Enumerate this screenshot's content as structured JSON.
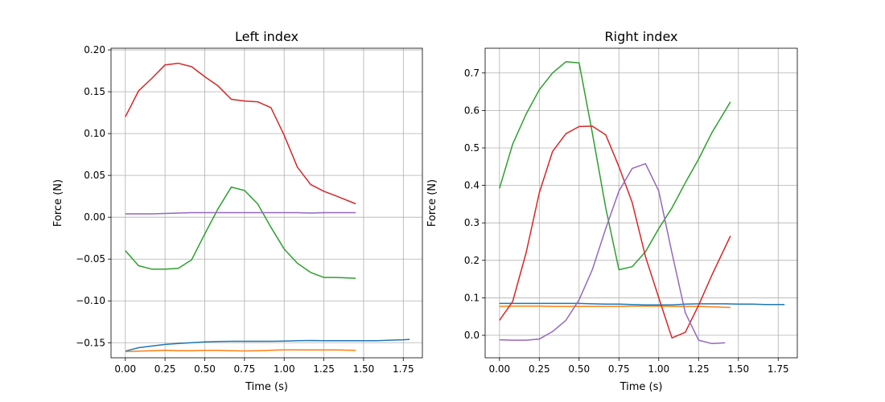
{
  "chart_data": [
    {
      "type": "line",
      "title": "Left index",
      "xlabel": "Time (s)",
      "ylabel": "Force (N)",
      "xlim": [
        -0.09,
        1.87
      ],
      "ylim": [
        -0.168,
        0.202
      ],
      "xticks": [
        0.0,
        0.25,
        0.5,
        0.75,
        1.0,
        1.25,
        1.5,
        1.75
      ],
      "xtick_labels": [
        "0.00",
        "0.25",
        "0.50",
        "0.75",
        "1.00",
        "1.25",
        "1.50",
        "1.75"
      ],
      "yticks": [
        -0.15,
        -0.1,
        -0.05,
        0.0,
        0.05,
        0.1,
        0.15,
        0.2
      ],
      "ytick_labels": [
        "−0.15",
        "−0.10",
        "−0.05",
        "0.00",
        "0.05",
        "0.10",
        "0.15",
        "0.20"
      ],
      "grid": true,
      "series": [
        {
          "color": "#1f77b4",
          "x": [
            0.0,
            0.083,
            0.167,
            0.25,
            0.333,
            0.417,
            0.5,
            0.583,
            0.667,
            0.75,
            0.833,
            0.917,
            1.0,
            1.083,
            1.167,
            1.25,
            1.333,
            1.417,
            1.5,
            1.583,
            1.667,
            1.75,
            1.79
          ],
          "y": [
            -0.16,
            -0.156,
            -0.154,
            -0.152,
            -0.151,
            -0.15,
            -0.149,
            -0.1485,
            -0.1483,
            -0.1483,
            -0.1483,
            -0.1483,
            -0.148,
            -0.1475,
            -0.1473,
            -0.1475,
            -0.1475,
            -0.1475,
            -0.1475,
            -0.1475,
            -0.147,
            -0.1465,
            -0.146
          ]
        },
        {
          "color": "#ff7f0e",
          "x": [
            0.0,
            0.083,
            0.167,
            0.25,
            0.333,
            0.417,
            0.5,
            0.583,
            0.667,
            0.75,
            0.833,
            0.917,
            1.0,
            1.083,
            1.167,
            1.25,
            1.333,
            1.417,
            1.45
          ],
          "y": [
            -0.1605,
            -0.16,
            -0.1595,
            -0.159,
            -0.1595,
            -0.1595,
            -0.1592,
            -0.1592,
            -0.1595,
            -0.1598,
            -0.1595,
            -0.159,
            -0.1585,
            -0.1585,
            -0.1587,
            -0.1587,
            -0.1587,
            -0.159,
            -0.1592
          ]
        },
        {
          "color": "#2ca02c",
          "x": [
            0.0,
            0.083,
            0.167,
            0.25,
            0.333,
            0.417,
            0.5,
            0.583,
            0.667,
            0.75,
            0.833,
            0.917,
            1.0,
            1.083,
            1.167,
            1.25,
            1.333,
            1.45
          ],
          "y": [
            -0.04,
            -0.058,
            -0.062,
            -0.062,
            -0.061,
            -0.051,
            -0.02,
            0.01,
            0.036,
            0.032,
            0.016,
            -0.012,
            -0.038,
            -0.055,
            -0.066,
            -0.072,
            -0.072,
            -0.073
          ]
        },
        {
          "color": "#d62728",
          "x": [
            0.0,
            0.083,
            0.167,
            0.25,
            0.333,
            0.417,
            0.5,
            0.583,
            0.667,
            0.75,
            0.833,
            0.917,
            1.0,
            1.083,
            1.167,
            1.25,
            1.333,
            1.45
          ],
          "y": [
            0.12,
            0.151,
            0.166,
            0.182,
            0.184,
            0.18,
            0.168,
            0.157,
            0.141,
            0.139,
            0.138,
            0.131,
            0.098,
            0.06,
            0.039,
            0.031,
            0.025,
            0.016
          ]
        },
        {
          "color": "#9467bd",
          "x": [
            0.0,
            0.083,
            0.167,
            0.25,
            0.333,
            0.417,
            0.5,
            0.583,
            0.667,
            0.75,
            0.833,
            0.917,
            1.0,
            1.083,
            1.167,
            1.25,
            1.333,
            1.45
          ],
          "y": [
            0.004,
            0.004,
            0.004,
            0.0045,
            0.005,
            0.0055,
            0.0055,
            0.0055,
            0.0055,
            0.0055,
            0.0055,
            0.0055,
            0.0055,
            0.0055,
            0.005,
            0.0055,
            0.0055,
            0.0055
          ]
        }
      ]
    },
    {
      "type": "line",
      "title": "Right index",
      "xlabel": "Time (s)",
      "ylabel": "Force (N)",
      "xlim": [
        -0.09,
        1.87
      ],
      "ylim": [
        -0.06,
        0.766
      ],
      "xticks": [
        0.0,
        0.25,
        0.5,
        0.75,
        1.0,
        1.25,
        1.5,
        1.75
      ],
      "xtick_labels": [
        "0.00",
        "0.25",
        "0.50",
        "0.75",
        "1.00",
        "1.25",
        "1.50",
        "1.75"
      ],
      "yticks": [
        0.0,
        0.1,
        0.2,
        0.3,
        0.4,
        0.5,
        0.6,
        0.7
      ],
      "ytick_labels": [
        "0.0",
        "0.1",
        "0.2",
        "0.3",
        "0.4",
        "0.5",
        "0.6",
        "0.7"
      ],
      "grid": true,
      "series": [
        {
          "color": "#1f77b4",
          "x": [
            0.0,
            0.083,
            0.167,
            0.25,
            0.333,
            0.417,
            0.5,
            0.583,
            0.667,
            0.75,
            0.833,
            0.917,
            1.0,
            1.083,
            1.167,
            1.25,
            1.333,
            1.417,
            1.5,
            1.583,
            1.667,
            1.75,
            1.79
          ],
          "y": [
            0.085,
            0.085,
            0.085,
            0.085,
            0.085,
            0.085,
            0.085,
            0.084,
            0.083,
            0.083,
            0.082,
            0.081,
            0.081,
            0.081,
            0.083,
            0.084,
            0.084,
            0.084,
            0.083,
            0.083,
            0.082,
            0.082,
            0.082
          ]
        },
        {
          "color": "#ff7f0e",
          "x": [
            0.0,
            0.083,
            0.167,
            0.25,
            0.333,
            0.417,
            0.5,
            0.583,
            0.667,
            0.75,
            0.833,
            0.917,
            1.0,
            1.083,
            1.167,
            1.25,
            1.333,
            1.45
          ],
          "y": [
            0.077,
            0.078,
            0.078,
            0.078,
            0.077,
            0.077,
            0.077,
            0.077,
            0.077,
            0.077,
            0.078,
            0.078,
            0.078,
            0.077,
            0.077,
            0.077,
            0.076,
            0.074
          ]
        },
        {
          "color": "#2ca02c",
          "x": [
            0.0,
            0.083,
            0.167,
            0.25,
            0.333,
            0.417,
            0.5,
            0.583,
            0.667,
            0.75,
            0.833,
            0.917,
            1.0,
            1.083,
            1.167,
            1.25,
            1.333,
            1.45
          ],
          "y": [
            0.392,
            0.51,
            0.59,
            0.655,
            0.7,
            0.73,
            0.727,
            0.54,
            0.34,
            0.175,
            0.183,
            0.223,
            0.285,
            0.34,
            0.407,
            0.47,
            0.54,
            0.623
          ]
        },
        {
          "color": "#d62728",
          "x": [
            0.0,
            0.083,
            0.167,
            0.25,
            0.333,
            0.417,
            0.5,
            0.583,
            0.667,
            0.75,
            0.833,
            0.917,
            1.0,
            1.083,
            1.167,
            1.25,
            1.333,
            1.45
          ],
          "y": [
            0.04,
            0.09,
            0.22,
            0.38,
            0.49,
            0.538,
            0.557,
            0.558,
            0.535,
            0.45,
            0.355,
            0.21,
            0.1,
            -0.007,
            0.008,
            0.08,
            0.16,
            0.265
          ]
        },
        {
          "color": "#9467bd",
          "x": [
            0.0,
            0.083,
            0.167,
            0.25,
            0.333,
            0.417,
            0.5,
            0.583,
            0.667,
            0.75,
            0.833,
            0.917,
            1.0,
            1.083,
            1.167,
            1.25,
            1.333,
            1.417
          ],
          "y": [
            -0.012,
            -0.013,
            -0.013,
            -0.01,
            0.01,
            0.04,
            0.095,
            0.175,
            0.285,
            0.385,
            0.445,
            0.458,
            0.385,
            0.22,
            0.06,
            -0.013,
            -0.022,
            -0.02
          ]
        }
      ]
    }
  ]
}
